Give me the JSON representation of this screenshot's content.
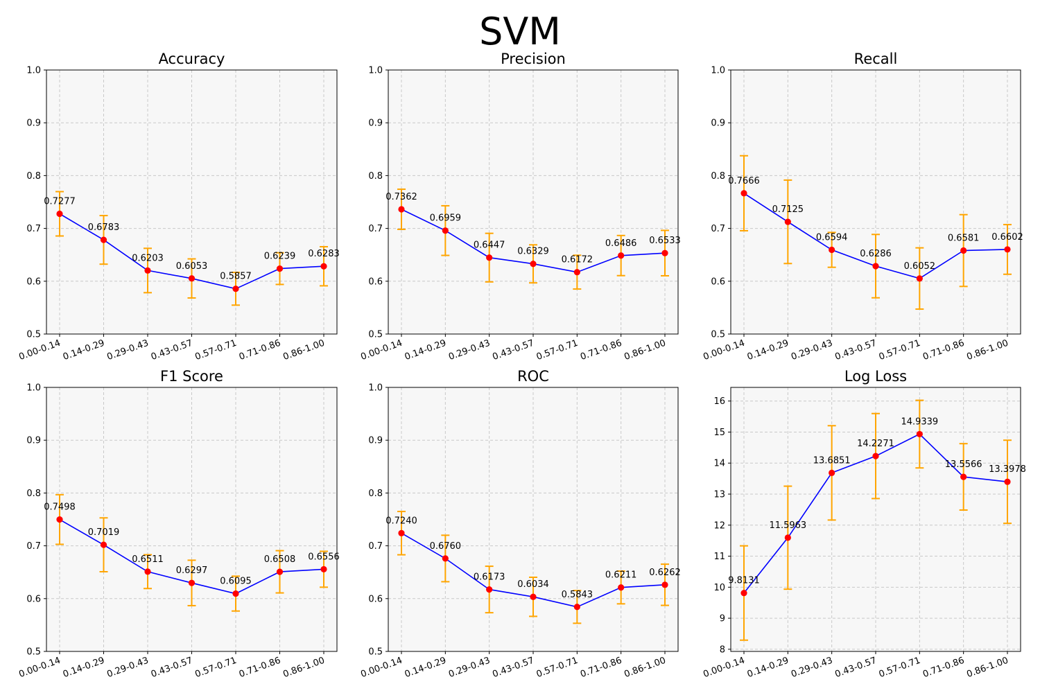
{
  "figure_title": "SVM",
  "colors": {
    "line": "#0000ff",
    "marker": "#ff0000",
    "errorbar": "#ffa500",
    "panel_bg": "#f7f7f7",
    "grid": "#c8c8c8"
  },
  "chart_data": [
    {
      "type": "line",
      "title": "Accuracy",
      "categories": [
        "0.00-0.14",
        "0.14-0.29",
        "0.29-0.43",
        "0.43-0.57",
        "0.57-0.71",
        "0.71-0.86",
        "0.86-1.00"
      ],
      "values": [
        0.7277,
        0.6783,
        0.6203,
        0.6053,
        0.5857,
        0.6239,
        0.6283
      ],
      "errors": [
        0.042,
        0.046,
        0.042,
        0.037,
        0.031,
        0.03,
        0.037
      ],
      "labels": [
        "0.7277",
        "0.6783",
        "0.6203",
        "0.6053",
        "0.5857",
        "0.6239",
        "0.6283"
      ],
      "ylim": [
        0.5,
        1.0
      ],
      "yticks": [
        "0.5",
        "0.6",
        "0.7",
        "0.8",
        "0.9",
        "1.0"
      ],
      "grid": true
    },
    {
      "type": "line",
      "title": "Precision",
      "categories": [
        "0.00-0.14",
        "0.14-0.29",
        "0.29-0.43",
        "0.43-0.57",
        "0.57-0.71",
        "0.71-0.86",
        "0.86-1.00"
      ],
      "values": [
        0.7362,
        0.6959,
        0.6447,
        0.6329,
        0.6172,
        0.6486,
        0.6533
      ],
      "errors": [
        0.038,
        0.047,
        0.046,
        0.036,
        0.032,
        0.038,
        0.043
      ],
      "labels": [
        "0.7362",
        "0.6959",
        "0.6447",
        "0.6329",
        "0.6172",
        "0.6486",
        "0.6533"
      ],
      "ylim": [
        0.5,
        1.0
      ],
      "yticks": [
        "0.5",
        "0.6",
        "0.7",
        "0.8",
        "0.9",
        "1.0"
      ],
      "grid": true
    },
    {
      "type": "line",
      "title": "Recall",
      "categories": [
        "0.00-0.14",
        "0.14-0.29",
        "0.29-0.43",
        "0.43-0.57",
        "0.57-0.71",
        "0.71-0.86",
        "0.86-1.00"
      ],
      "values": [
        0.7666,
        0.7125,
        0.6594,
        0.6286,
        0.6052,
        0.6581,
        0.6602
      ],
      "errors": [
        0.071,
        0.079,
        0.033,
        0.06,
        0.058,
        0.068,
        0.047
      ],
      "labels": [
        "0.7666",
        "0.7125",
        "0.6594",
        "0.6286",
        "0.6052",
        "0.6581",
        "0.6602"
      ],
      "ylim": [
        0.5,
        1.0
      ],
      "yticks": [
        "0.5",
        "0.6",
        "0.7",
        "0.8",
        "0.9",
        "1.0"
      ],
      "grid": true
    },
    {
      "type": "line",
      "title": "F1 Score",
      "categories": [
        "0.00-0.14",
        "0.14-0.29",
        "0.29-0.43",
        "0.43-0.57",
        "0.57-0.71",
        "0.71-0.86",
        "0.86-1.00"
      ],
      "values": [
        0.7498,
        0.7019,
        0.6511,
        0.6297,
        0.6095,
        0.6508,
        0.6556
      ],
      "errors": [
        0.047,
        0.051,
        0.032,
        0.043,
        0.033,
        0.04,
        0.034
      ],
      "labels": [
        "0.7498",
        "0.7019",
        "0.6511",
        "0.6297",
        "0.6095",
        "0.6508",
        "0.6556"
      ],
      "ylim": [
        0.5,
        1.0
      ],
      "yticks": [
        "0.5",
        "0.6",
        "0.7",
        "0.8",
        "0.9",
        "1.0"
      ],
      "grid": true
    },
    {
      "type": "line",
      "title": "ROC",
      "categories": [
        "0.00-0.14",
        "0.14-0.29",
        "0.29-0.43",
        "0.43-0.57",
        "0.57-0.71",
        "0.71-0.86",
        "0.86-1.00"
      ],
      "values": [
        0.724,
        0.676,
        0.6173,
        0.6034,
        0.5843,
        0.6211,
        0.6262
      ],
      "errors": [
        0.041,
        0.044,
        0.044,
        0.037,
        0.031,
        0.031,
        0.039
      ],
      "labels": [
        "0.7240",
        "0.6760",
        "0.6173",
        "0.6034",
        "0.5843",
        "0.6211",
        "0.6262"
      ],
      "ylim": [
        0.5,
        1.0
      ],
      "yticks": [
        "0.5",
        "0.6",
        "0.7",
        "0.8",
        "0.9",
        "1.0"
      ],
      "grid": true
    },
    {
      "type": "line",
      "title": "Log Loss",
      "categories": [
        "0.00-0.14",
        "0.14-0.29",
        "0.29-0.43",
        "0.43-0.57",
        "0.57-0.71",
        "0.71-0.86",
        "0.86-1.00"
      ],
      "values": [
        9.8131,
        11.5963,
        13.6851,
        14.2271,
        14.9339,
        13.5566,
        13.3978
      ],
      "errors": [
        1.52,
        1.66,
        1.52,
        1.37,
        1.09,
        1.07,
        1.34
      ],
      "labels": [
        "9.8131",
        "11.5963",
        "13.6851",
        "14.2271",
        "14.9339",
        "13.5566",
        "13.3978"
      ],
      "ylim": [
        7.93,
        16.44
      ],
      "yticks": [
        "8",
        "9",
        "10",
        "11",
        "12",
        "13",
        "14",
        "15",
        "16"
      ],
      "grid": true
    }
  ]
}
